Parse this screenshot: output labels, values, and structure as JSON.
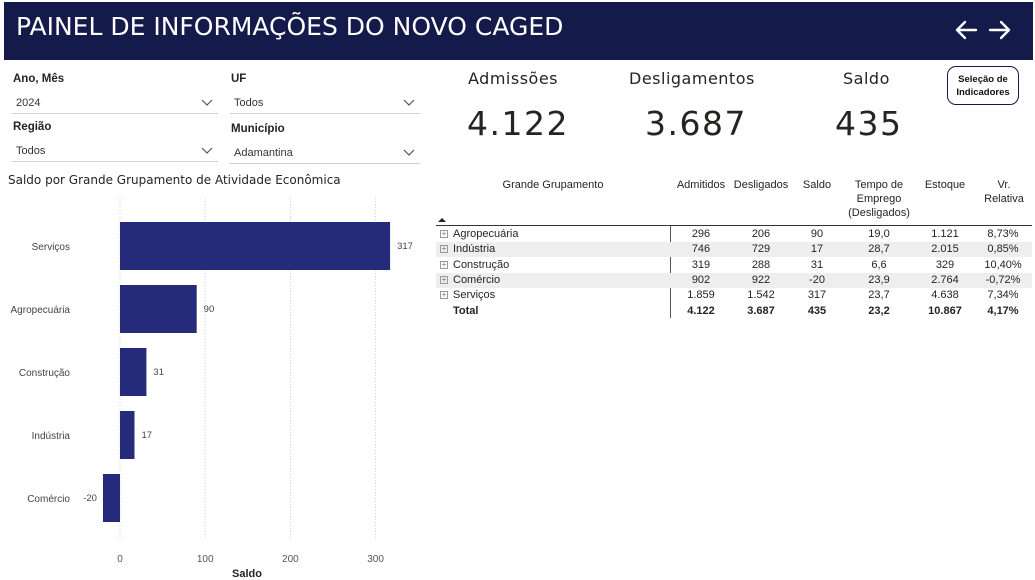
{
  "header": {
    "title": "PAINEL DE INFORMAÇÕES DO NOVO CAGED",
    "bg_color": "#141a4a",
    "back_icon": "arrow-left-icon",
    "forward_icon": "arrow-right-icon"
  },
  "filters": {
    "ano_mes": {
      "label": "Ano, Mês",
      "value": "2024"
    },
    "uf": {
      "label": "UF",
      "value": "Todos"
    },
    "regiao": {
      "label": "Região",
      "value": "Todos"
    },
    "municipio": {
      "label": "Município",
      "value": "Adamantina"
    }
  },
  "kpis": {
    "admissoes": {
      "label": "Admissões",
      "value": "4.122"
    },
    "desligamentos": {
      "label": "Desligamentos",
      "value": "3.687"
    },
    "saldo": {
      "label": "Saldo",
      "value": "435"
    }
  },
  "indicator_button": {
    "line1": "Seleção de",
    "line2": "Indicadores"
  },
  "chart_data": {
    "type": "bar",
    "orientation": "horizontal",
    "title": "Saldo por Grande Grupamento de Atividade Econômica",
    "xlabel": "Saldo",
    "ylabel": "",
    "categories": [
      "Serviços",
      "Agropecuária",
      "Construção",
      "Indústria",
      "Comércio"
    ],
    "values": [
      317,
      90,
      31,
      17,
      -20
    ],
    "xlim": [
      -20,
      317
    ],
    "xticks": [
      0,
      100,
      200,
      300
    ],
    "bar_color": "#252a7a",
    "grid": "vertical dotted"
  },
  "table": {
    "headers": {
      "grupamento": "Grande Grupamento",
      "admitidos": "Admitidos",
      "desligados": "Desligados",
      "saldo": "Saldo",
      "tempo_l1": "Tempo de",
      "tempo_l2": "Emprego",
      "tempo_l3": "(Desligados)",
      "estoque": "Estoque",
      "vr_l1": "Vr.",
      "vr_l2": "Relativa"
    },
    "rows": [
      {
        "name": "Agropecuária",
        "admitidos": "296",
        "desligados": "206",
        "saldo": "90",
        "tempo": "19,0",
        "estoque": "1.121",
        "vr": "8,73%"
      },
      {
        "name": "Indústria",
        "admitidos": "746",
        "desligados": "729",
        "saldo": "17",
        "tempo": "28,7",
        "estoque": "2.015",
        "vr": "0,85%"
      },
      {
        "name": "Construção",
        "admitidos": "319",
        "desligados": "288",
        "saldo": "31",
        "tempo": "6,6",
        "estoque": "329",
        "vr": "10,40%"
      },
      {
        "name": "Comércio",
        "admitidos": "902",
        "desligados": "922",
        "saldo": "-20",
        "tempo": "23,9",
        "estoque": "2.764",
        "vr": "-0,72%"
      },
      {
        "name": "Serviços",
        "admitidos": "1.859",
        "desligados": "1.542",
        "saldo": "317",
        "tempo": "23,7",
        "estoque": "4.638",
        "vr": "7,34%"
      }
    ],
    "total": {
      "name": "Total",
      "admitidos": "4.122",
      "desligados": "3.687",
      "saldo": "435",
      "tempo": "23,2",
      "estoque": "10.867",
      "vr": "4,17%"
    }
  }
}
